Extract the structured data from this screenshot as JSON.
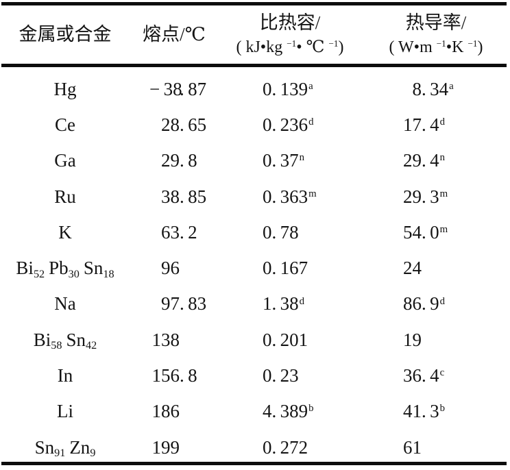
{
  "page": {
    "background_color": "#ffffff",
    "text_color": "#141414",
    "rule_color": "#0d0d0d"
  },
  "table": {
    "headers": {
      "metal": "金属或合金",
      "melting_point": "熔点/℃",
      "specific_heat_title": "比热容/",
      "specific_heat_unit_parts": [
        [
          "t",
          "( kJ•kg "
        ],
        [
          "s",
          "−1"
        ],
        [
          "t",
          "• ℃ "
        ],
        [
          "s",
          "−1"
        ],
        [
          "t",
          ")"
        ]
      ],
      "thermal_conductivity_title": "热导率/",
      "thermal_conductivity_unit_parts": [
        [
          "t",
          "( W•m "
        ],
        [
          "s",
          "−1"
        ],
        [
          "t",
          "•K "
        ],
        [
          "s",
          "−1"
        ],
        [
          "t",
          ")"
        ]
      ]
    },
    "rows": [
      {
        "name": [
          [
            "t",
            "Hg"
          ]
        ],
        "melting_point": "-38.87",
        "specific_heat": "0.139",
        "specific_heat_note": "a",
        "thermal_conductivity": "8.34",
        "thermal_conductivity_note": "a"
      },
      {
        "name": [
          [
            "t",
            "Ce"
          ]
        ],
        "melting_point": "28.65",
        "specific_heat": "0.236",
        "specific_heat_note": "d",
        "thermal_conductivity": "17.4",
        "thermal_conductivity_note": "d"
      },
      {
        "name": [
          [
            "t",
            "Ga"
          ]
        ],
        "melting_point": "29.8",
        "specific_heat": "0.37",
        "specific_heat_note": "n",
        "thermal_conductivity": "29.4",
        "thermal_conductivity_note": "n"
      },
      {
        "name": [
          [
            "t",
            "Ru"
          ]
        ],
        "melting_point": "38.85",
        "specific_heat": "0.363",
        "specific_heat_note": "m",
        "thermal_conductivity": "29.3",
        "thermal_conductivity_note": "m"
      },
      {
        "name": [
          [
            "t",
            "K"
          ]
        ],
        "melting_point": "63.2",
        "specific_heat": "0.78",
        "specific_heat_note": "",
        "thermal_conductivity": "54.0",
        "thermal_conductivity_note": "m"
      },
      {
        "name": [
          [
            "t",
            "Bi"
          ],
          [
            "b",
            "52"
          ],
          [
            "t",
            "Pb"
          ],
          [
            "b",
            "30"
          ],
          [
            "t",
            "Sn"
          ],
          [
            "b",
            "18"
          ]
        ],
        "melting_point": "96",
        "specific_heat": "0.167",
        "specific_heat_note": "",
        "thermal_conductivity": "24",
        "thermal_conductivity_note": ""
      },
      {
        "name": [
          [
            "t",
            "Na"
          ]
        ],
        "melting_point": "97.83",
        "specific_heat": "1.38",
        "specific_heat_note": "d",
        "thermal_conductivity": "86.9",
        "thermal_conductivity_note": "d"
      },
      {
        "name": [
          [
            "t",
            "Bi"
          ],
          [
            "b",
            "58"
          ],
          [
            "t",
            "Sn"
          ],
          [
            "b",
            "42"
          ]
        ],
        "melting_point": "138",
        "specific_heat": "0.201",
        "specific_heat_note": "",
        "thermal_conductivity": "19",
        "thermal_conductivity_note": ""
      },
      {
        "name": [
          [
            "t",
            "In"
          ]
        ],
        "melting_point": "156.8",
        "specific_heat": "0.23",
        "specific_heat_note": "",
        "thermal_conductivity": "36.4",
        "thermal_conductivity_note": "c"
      },
      {
        "name": [
          [
            "t",
            "Li"
          ]
        ],
        "melting_point": "186",
        "specific_heat": "4.389",
        "specific_heat_note": "b",
        "thermal_conductivity": "41.3",
        "thermal_conductivity_note": "b"
      },
      {
        "name": [
          [
            "t",
            "Sn"
          ],
          [
            "b",
            "91"
          ],
          [
            "t",
            "Zn"
          ],
          [
            "b",
            "9"
          ]
        ],
        "melting_point": "199",
        "specific_heat": "0.272",
        "specific_heat_note": "",
        "thermal_conductivity": "61",
        "thermal_conductivity_note": ""
      }
    ]
  }
}
